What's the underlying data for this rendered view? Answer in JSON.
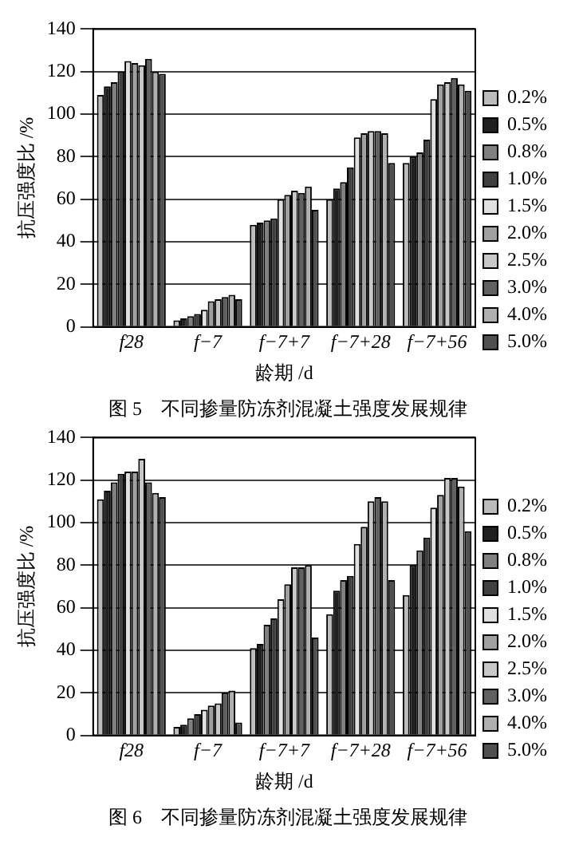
{
  "chart_data": [
    {
      "type": "bar",
      "title": "图 5　不同掺量防冻剂混凝土强度发展规律",
      "xlabel": "龄期 /d",
      "ylabel": "抗压强度比 /%",
      "categories": [
        "f28",
        "f−7",
        "f−7+7",
        "f−7+28",
        "f−7+56"
      ],
      "ylim": [
        0,
        140
      ],
      "yticks": [
        0,
        20,
        40,
        60,
        80,
        100,
        120,
        140
      ],
      "grid": "y",
      "legend": "right",
      "series": [
        {
          "name": "0.2%",
          "color": "#bcbcbc",
          "values": [
            109,
            3,
            48,
            60,
            77
          ]
        },
        {
          "name": "0.5%",
          "color": "#202020",
          "values": [
            113,
            4,
            49,
            65,
            80
          ]
        },
        {
          "name": "0.8%",
          "color": "#808080",
          "values": [
            115,
            5,
            50,
            68,
            82
          ]
        },
        {
          "name": "1.0%",
          "color": "#404040",
          "values": [
            120,
            6,
            51,
            75,
            88
          ]
        },
        {
          "name": "1.5%",
          "color": "#e0e0e0",
          "values": [
            125,
            8,
            60,
            89,
            107
          ]
        },
        {
          "name": "2.0%",
          "color": "#a0a0a0",
          "values": [
            124,
            12,
            62,
            91,
            114
          ]
        },
        {
          "name": "2.5%",
          "color": "#c8c8c8",
          "values": [
            123,
            13,
            64,
            92,
            115
          ]
        },
        {
          "name": "3.0%",
          "color": "#606060",
          "values": [
            126,
            14,
            63,
            92,
            117
          ]
        },
        {
          "name": "4.0%",
          "color": "#b0b0b0",
          "values": [
            120,
            15,
            66,
            91,
            114
          ]
        },
        {
          "name": "5.0%",
          "color": "#505050",
          "values": [
            119,
            13,
            55,
            77,
            111
          ]
        }
      ]
    },
    {
      "type": "bar",
      "title": "图 6　不同掺量防冻剂混凝土强度发展规律",
      "xlabel": "龄期 /d",
      "ylabel": "抗压强度比 /%",
      "categories": [
        "f28",
        "f−7",
        "f−7+7",
        "f−7+28",
        "f−7+56"
      ],
      "ylim": [
        0,
        140
      ],
      "yticks": [
        0,
        20,
        40,
        60,
        80,
        100,
        120,
        140
      ],
      "grid": "y",
      "legend": "right",
      "series": [
        {
          "name": "0.2%",
          "color": "#bcbcbc",
          "values": [
            111,
            4,
            41,
            57,
            66
          ]
        },
        {
          "name": "0.5%",
          "color": "#202020",
          "values": [
            115,
            5,
            43,
            68,
            80
          ]
        },
        {
          "name": "0.8%",
          "color": "#808080",
          "values": [
            119,
            8,
            52,
            73,
            87
          ]
        },
        {
          "name": "1.0%",
          "color": "#404040",
          "values": [
            123,
            10,
            55,
            75,
            93
          ]
        },
        {
          "name": "1.5%",
          "color": "#e0e0e0",
          "values": [
            124,
            12,
            64,
            90,
            107
          ]
        },
        {
          "name": "2.0%",
          "color": "#a0a0a0",
          "values": [
            124,
            14,
            71,
            98,
            113
          ]
        },
        {
          "name": "2.5%",
          "color": "#c8c8c8",
          "values": [
            130,
            15,
            79,
            110,
            121
          ]
        },
        {
          "name": "3.0%",
          "color": "#606060",
          "values": [
            119,
            20,
            79,
            112,
            121
          ]
        },
        {
          "name": "4.0%",
          "color": "#b0b0b0",
          "values": [
            114,
            21,
            80,
            110,
            117
          ]
        },
        {
          "name": "5.0%",
          "color": "#505050",
          "values": [
            112,
            6,
            46,
            73,
            96
          ]
        }
      ]
    }
  ]
}
